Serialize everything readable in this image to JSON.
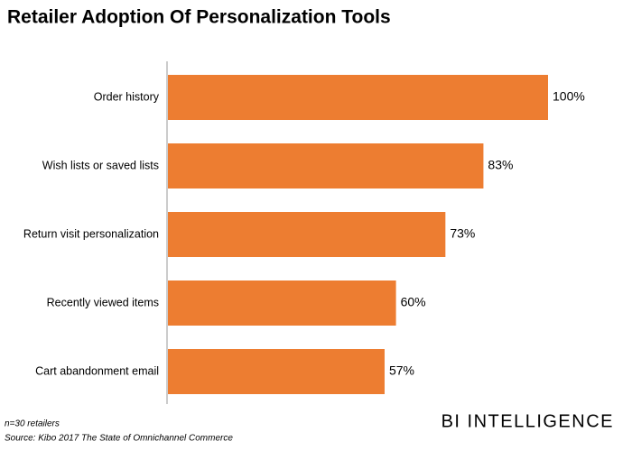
{
  "chart_data": {
    "type": "hbar",
    "title": "Retailer Adoption Of Personalization Tools",
    "categories": [
      "Order history",
      "Wish lists or saved lists",
      "Return visit personalization",
      "Recently viewed items",
      "Cart abandonment email"
    ],
    "values": [
      100,
      83,
      73,
      60,
      57
    ],
    "value_labels": [
      "100%",
      "83%",
      "73%",
      "60%",
      "57%"
    ],
    "color": "#ed7d31",
    "note": "n=30 retailers",
    "source": "Source: Kibo 2017 The State of Omnichannel Commerce",
    "brand": "BI INTELLIGENCE"
  }
}
